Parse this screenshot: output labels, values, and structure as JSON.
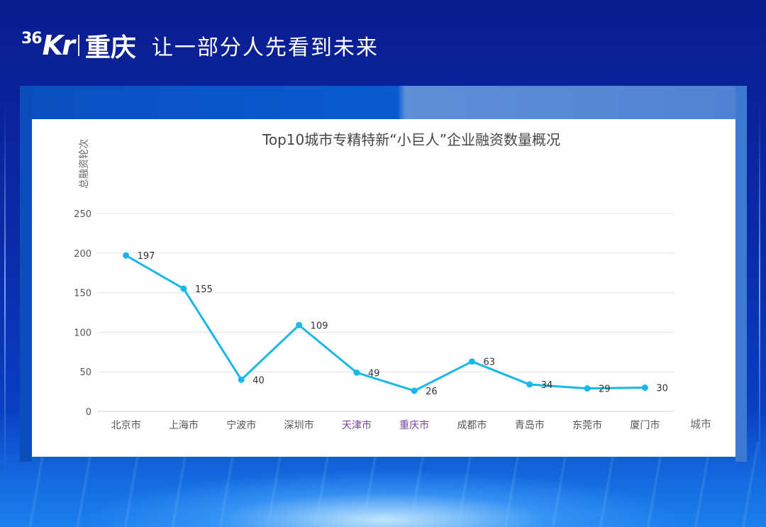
{
  "header": {
    "logo_num": "36",
    "logo_kr": "Kr",
    "logo_city": "重庆",
    "slogan": "让一部分人先看到未来"
  },
  "chart_data": {
    "type": "line",
    "title": "Top10城市专精特新“小巨人”企业融资数量概况",
    "xlabel": "城市",
    "ylabel": "总融资轮次",
    "ylim": [
      0,
      250
    ],
    "yticks": [
      0,
      50,
      100,
      150,
      200,
      250
    ],
    "grid": true,
    "categories": [
      "北京市",
      "上海市",
      "宁波市",
      "深圳市",
      "天津市",
      "重庆市",
      "成都市",
      "青岛市",
      "东莞市",
      "厦门市"
    ],
    "category_colors": [
      "#555555",
      "#555555",
      "#555555",
      "#555555",
      "#7a3fa0",
      "#7a3fa0",
      "#555555",
      "#555555",
      "#555555",
      "#555555"
    ],
    "series": [
      {
        "values": [
          197,
          155,
          40,
          109,
          49,
          26,
          63,
          34,
          29,
          30
        ],
        "color": "#1ab8ea"
      }
    ],
    "data_labels": [
      "197",
      "155",
      "40",
      "109",
      "49",
      "26",
      "63",
      "34",
      "29",
      "30"
    ]
  }
}
